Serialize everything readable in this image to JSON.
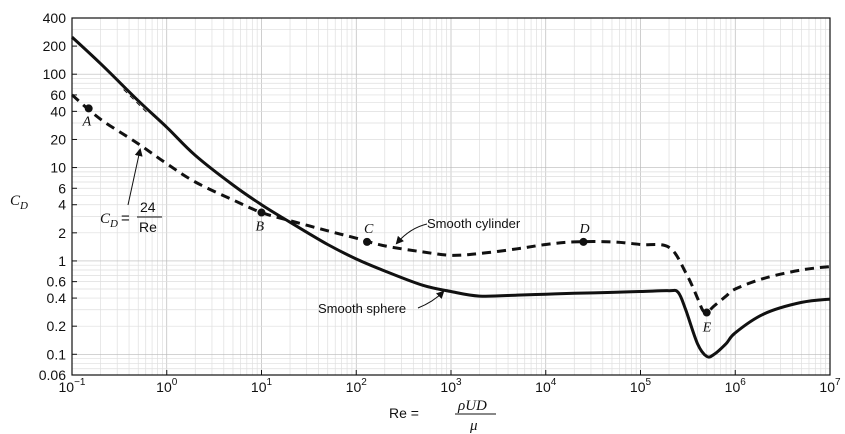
{
  "chart_data": {
    "type": "line",
    "xscale": "log",
    "yscale": "log",
    "xlim": [
      0.1,
      10000000
    ],
    "ylim": [
      0.06,
      400
    ],
    "grid": true,
    "xticks": [
      {
        "value": 0.1,
        "mant": "10",
        "exp": "−1"
      },
      {
        "value": 1,
        "mant": "10",
        "exp": "0"
      },
      {
        "value": 10,
        "mant": "10",
        "exp": "1"
      },
      {
        "value": 100,
        "mant": "10",
        "exp": "2"
      },
      {
        "value": 1000,
        "mant": "10",
        "exp": "3"
      },
      {
        "value": 10000,
        "mant": "10",
        "exp": "4"
      },
      {
        "value": 100000,
        "mant": "10",
        "exp": "5"
      },
      {
        "value": 1000000,
        "mant": "10",
        "exp": "6"
      },
      {
        "value": 10000000,
        "mant": "10",
        "exp": "7"
      }
    ],
    "yticks": [
      {
        "value": 400,
        "label": "400"
      },
      {
        "value": 200,
        "label": "200"
      },
      {
        "value": 100,
        "label": "100"
      },
      {
        "value": 60,
        "label": "60"
      },
      {
        "value": 40,
        "label": "40"
      },
      {
        "value": 20,
        "label": "20"
      },
      {
        "value": 10,
        "label": "10"
      },
      {
        "value": 6,
        "label": "6"
      },
      {
        "value": 4,
        "label": "4"
      },
      {
        "value": 2,
        "label": "2"
      },
      {
        "value": 1,
        "label": "1"
      },
      {
        "value": 0.6,
        "label": "0.6"
      },
      {
        "value": 0.4,
        "label": "0.4"
      },
      {
        "value": 0.2,
        "label": "0.2"
      },
      {
        "value": 0.1,
        "label": "0.1"
      },
      {
        "value": 0.06,
        "label": "0.06"
      }
    ],
    "ylabel": {
      "main": "C",
      "sub": "D"
    },
    "xlabel": {
      "lhs": "Re =",
      "numerator": "ρUD",
      "denominator": "μ"
    },
    "series": [
      {
        "name": "Smooth sphere",
        "style": "solid",
        "x": [
          0.1,
          0.2,
          0.5,
          1,
          2,
          5,
          10,
          20,
          50,
          100,
          200,
          500,
          1000,
          2000,
          5000,
          10000,
          20000,
          50000,
          100000,
          200000,
          250000,
          300000,
          400000,
          500000,
          600000,
          800000,
          1000000,
          2000000,
          5000000,
          10000000
        ],
        "y": [
          250,
          130,
          52,
          27,
          13.5,
          6.5,
          4.0,
          2.6,
          1.5,
          1.05,
          0.78,
          0.55,
          0.47,
          0.42,
          0.43,
          0.44,
          0.45,
          0.46,
          0.47,
          0.48,
          0.46,
          0.3,
          0.13,
          0.095,
          0.1,
          0.13,
          0.17,
          0.27,
          0.36,
          0.39
        ]
      },
      {
        "name": "Smooth cylinder",
        "style": "dashed",
        "x": [
          0.1,
          0.2,
          0.5,
          1,
          2,
          5,
          10,
          20,
          50,
          100,
          200,
          500,
          1000,
          2000,
          5000,
          10000,
          20000,
          50000,
          100000,
          200000,
          300000,
          400000,
          450000,
          500000,
          600000,
          800000,
          1000000,
          2000000,
          5000000,
          10000000
        ],
        "y": [
          60,
          33,
          18,
          11,
          7,
          4.5,
          3.3,
          2.7,
          2.1,
          1.75,
          1.45,
          1.25,
          1.15,
          1.2,
          1.35,
          1.5,
          1.6,
          1.6,
          1.5,
          1.4,
          0.75,
          0.4,
          0.3,
          0.28,
          0.33,
          0.42,
          0.5,
          0.65,
          0.8,
          0.87
        ]
      },
      {
        "name": "CD = 24/Re",
        "style": "thin-dashed",
        "x": [
          0.35,
          0.65
        ],
        "y": [
          68.57,
          36.92
        ]
      }
    ],
    "points": [
      {
        "label": "A",
        "x": 0.15,
        "y": 43
      },
      {
        "label": "B",
        "x": 10,
        "y": 3.3
      },
      {
        "label": "C",
        "x": 130,
        "y": 1.6
      },
      {
        "label": "D",
        "x": 25000,
        "y": 1.6
      },
      {
        "label": "E",
        "x": 500000,
        "y": 0.28
      }
    ],
    "annotations": {
      "cylinder_label": "Smooth cylinder",
      "sphere_label": "Smooth sphere",
      "stokes": {
        "lhs_main": "C",
        "lhs_sub": "D",
        "eq": "=",
        "num": "24",
        "den": "Re"
      }
    }
  }
}
